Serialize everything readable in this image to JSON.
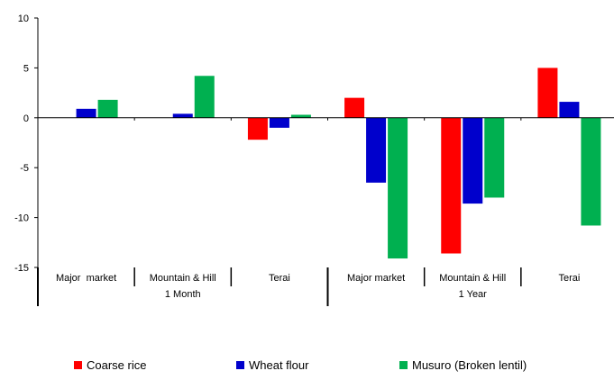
{
  "chart_data": {
    "type": "bar",
    "ylim": [
      -15,
      10
    ],
    "yticks": [
      -15,
      -10,
      -5,
      0,
      5,
      10
    ],
    "ytick_labels": [
      "-15",
      "-10",
      "-5",
      "0",
      "5",
      "10"
    ],
    "grid": false,
    "legend_placement": "bottom",
    "categories": [
      "Major  market",
      "Mountain & Hill",
      "Terai",
      "Major market",
      "Mountain & Hill",
      "Terai"
    ],
    "groups": [
      {
        "label": "1 Month",
        "span": [
          0,
          2
        ]
      },
      {
        "label": "1 Year",
        "span": [
          3,
          5
        ]
      }
    ],
    "series": [
      {
        "name": "Coarse rice",
        "color": "#ff0000",
        "values": [
          0,
          0,
          -2.2,
          2.0,
          -13.6,
          5.0
        ]
      },
      {
        "name": "Wheat flour",
        "color": "#0000cc",
        "values": [
          0.9,
          0.4,
          -1.0,
          -6.5,
          -8.6,
          1.6
        ]
      },
      {
        "name": "Musuro (Broken lentil)",
        "color": "#00b050",
        "values": [
          1.8,
          4.2,
          0.3,
          -14.1,
          -8.0,
          -10.8
        ]
      }
    ]
  }
}
